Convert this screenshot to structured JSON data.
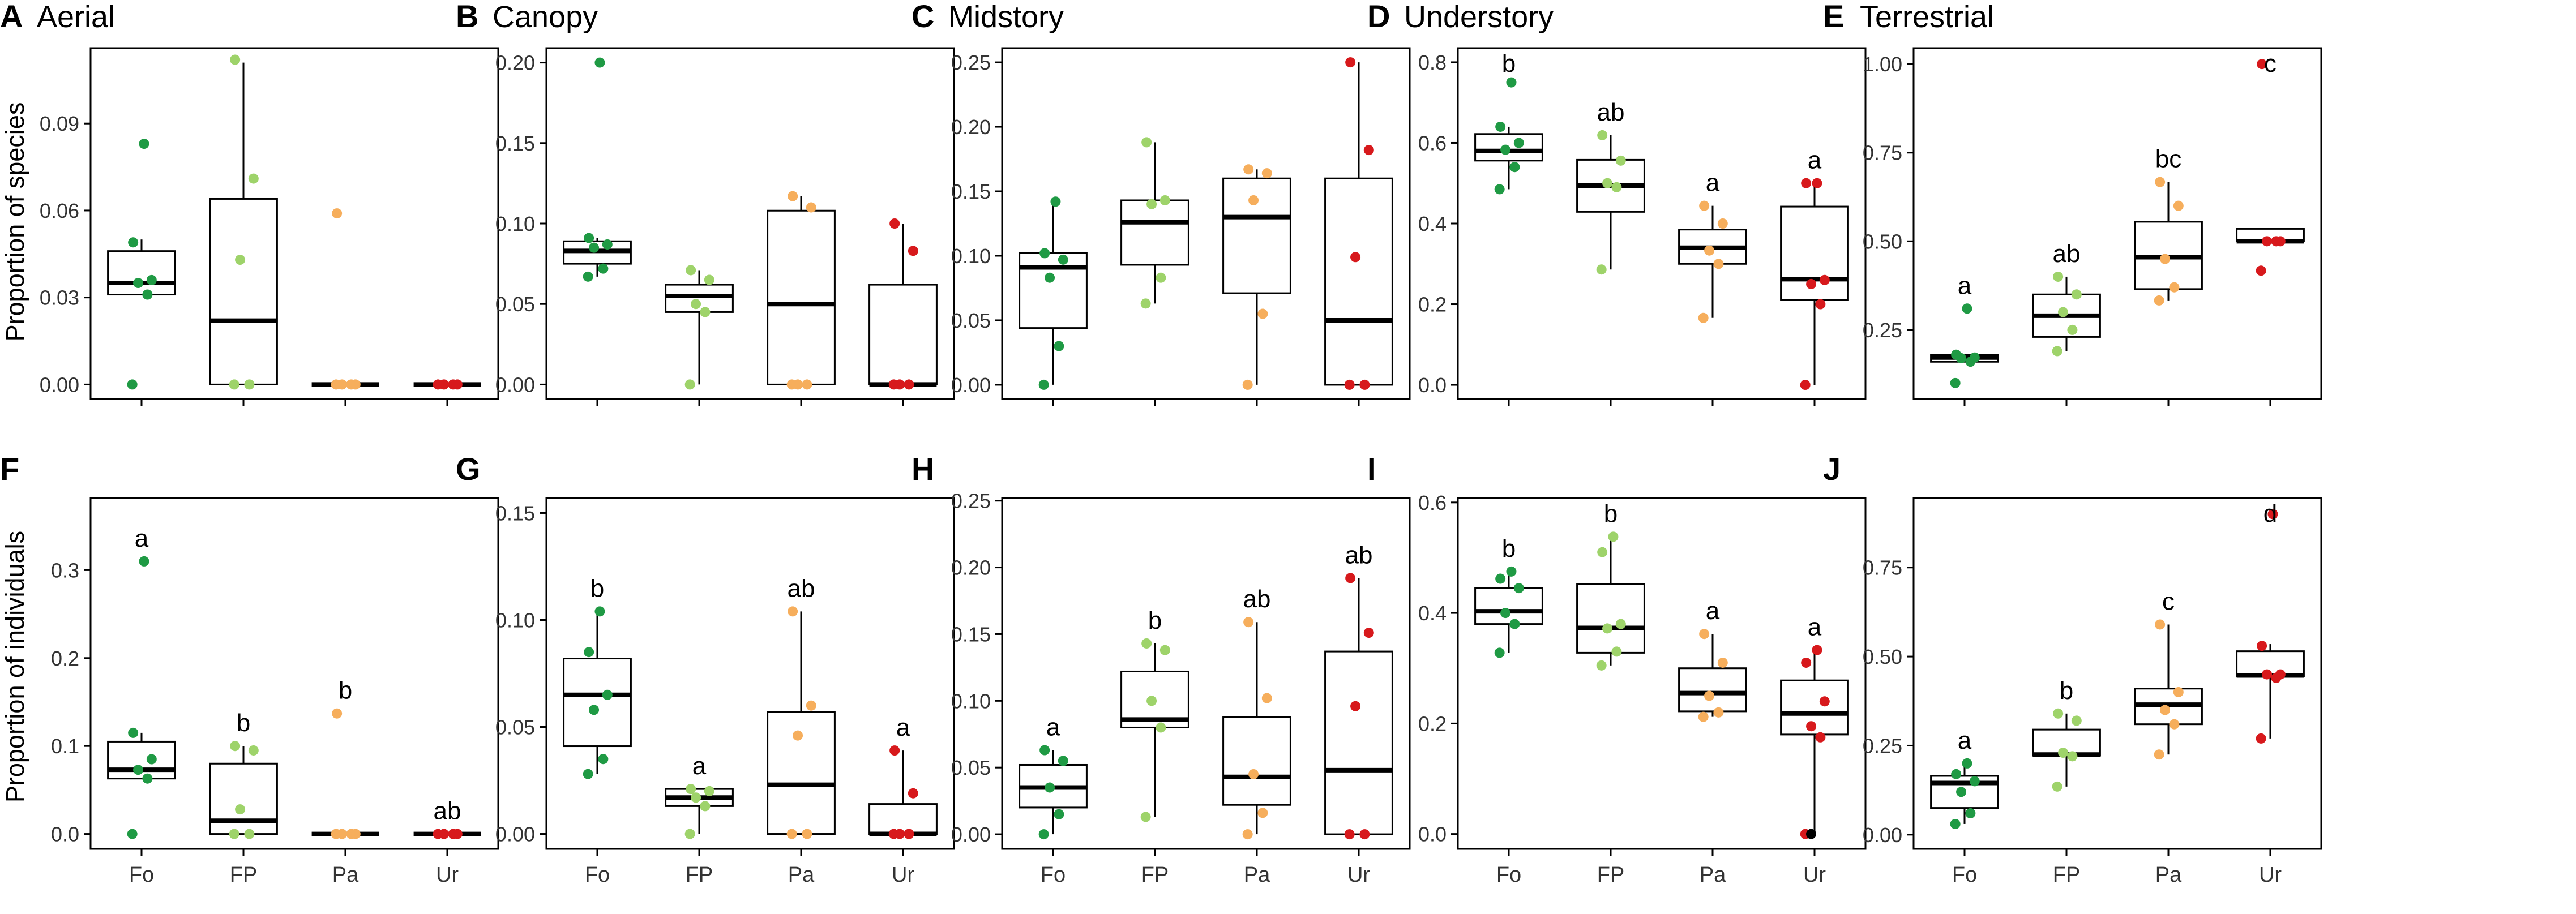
{
  "figure": {
    "y_axis_titles": [
      "Proportion of species",
      "Proportion of individuals"
    ],
    "categories": [
      "Fo",
      "FP",
      "Pa",
      "Ur"
    ],
    "colors": {
      "Fo": "#1f9a44",
      "FP": "#9ed36a",
      "Pa": "#f6ae5c",
      "Ur": "#d7191c",
      "extra": "#000000"
    }
  },
  "chart_data": [
    {
      "type": "box",
      "letter": "A",
      "title": "Aerial",
      "ylim": [
        -0.005,
        0.116
      ],
      "yticks": [
        0,
        0.03,
        0.06,
        0.09
      ],
      "tick_labels": [
        "0.00",
        "0.03",
        "0.06",
        "0.09"
      ],
      "boxes": [
        {
          "q1": 0.031,
          "median": 0.035,
          "q3": 0.046,
          "lo": 0.031,
          "hi": 0.05
        },
        {
          "q1": 0.0,
          "median": 0.022,
          "q3": 0.064,
          "lo": 0.0,
          "hi": 0.111
        },
        {
          "q1": 0.0,
          "median": 0.0,
          "q3": 0.0,
          "lo": 0.0,
          "hi": 0.0
        },
        {
          "q1": 0.0,
          "median": 0.0,
          "q3": 0.0,
          "lo": 0.0,
          "hi": 0.0
        }
      ],
      "points": [
        [
          0.0,
          0.031,
          0.035,
          0.036,
          0.049,
          0.083
        ],
        [
          0.0,
          0.0,
          0.043,
          0.071,
          0.112
        ],
        [
          0.0,
          0.0,
          0.0,
          0.0,
          0.059
        ],
        [
          0.0,
          0.0,
          0.0,
          0.0
        ]
      ],
      "sig": []
    },
    {
      "type": "box",
      "letter": "B",
      "title": "Canopy",
      "ylim": [
        -0.009,
        0.209
      ],
      "yticks": [
        0,
        0.05,
        0.1,
        0.15,
        0.2
      ],
      "tick_labels": [
        "0.00",
        "0.05",
        "0.10",
        "0.15",
        "0.20"
      ],
      "boxes": [
        {
          "q1": 0.075,
          "median": 0.083,
          "q3": 0.089,
          "lo": 0.067,
          "hi": 0.091
        },
        {
          "q1": 0.045,
          "median": 0.055,
          "q3": 0.062,
          "lo": 0.0,
          "hi": 0.071
        },
        {
          "q1": 0.0,
          "median": 0.05,
          "q3": 0.108,
          "lo": 0.0,
          "hi": 0.117
        },
        {
          "q1": 0.0,
          "median": 0.0,
          "q3": 0.062,
          "lo": 0.0,
          "hi": 0.1
        }
      ],
      "points": [
        [
          0.067,
          0.072,
          0.085,
          0.087,
          0.091,
          0.2
        ],
        [
          0.0,
          0.045,
          0.05,
          0.065,
          0.071
        ],
        [
          0.0,
          0.0,
          0.0,
          0.11,
          0.117
        ],
        [
          0.0,
          0.0,
          0.0,
          0.083,
          0.1
        ]
      ],
      "sig": []
    },
    {
      "type": "box",
      "letter": "C",
      "title": "Midstory",
      "ylim": [
        -0.011,
        0.261
      ],
      "yticks": [
        0,
        0.05,
        0.1,
        0.15,
        0.2,
        0.25
      ],
      "tick_labels": [
        "0.00",
        "0.05",
        "0.10",
        "0.15",
        "0.20",
        "0.25"
      ],
      "boxes": [
        {
          "q1": 0.044,
          "median": 0.091,
          "q3": 0.102,
          "lo": 0.0,
          "hi": 0.142
        },
        {
          "q1": 0.093,
          "median": 0.126,
          "q3": 0.143,
          "lo": 0.063,
          "hi": 0.188
        },
        {
          "q1": 0.071,
          "median": 0.13,
          "q3": 0.16,
          "lo": 0.0,
          "hi": 0.167
        },
        {
          "q1": 0.0,
          "median": 0.05,
          "q3": 0.16,
          "lo": 0.0,
          "hi": 0.25
        }
      ],
      "points": [
        [
          0.0,
          0.03,
          0.083,
          0.097,
          0.102,
          0.142
        ],
        [
          0.063,
          0.083,
          0.14,
          0.143,
          0.188
        ],
        [
          0.0,
          0.055,
          0.143,
          0.164,
          0.167
        ],
        [
          0.0,
          0.0,
          0.099,
          0.182,
          0.25
        ]
      ],
      "sig": []
    },
    {
      "type": "box",
      "letter": "D",
      "title": "Understory",
      "ylim": [
        -0.035,
        0.835
      ],
      "yticks": [
        0,
        0.2,
        0.4,
        0.6,
        0.8
      ],
      "tick_labels": [
        "0.0",
        "0.2",
        "0.4",
        "0.6",
        "0.8"
      ],
      "boxes": [
        {
          "q1": 0.556,
          "median": 0.58,
          "q3": 0.622,
          "lo": 0.485,
          "hi": 0.64
        },
        {
          "q1": 0.429,
          "median": 0.494,
          "q3": 0.558,
          "lo": 0.286,
          "hi": 0.619
        },
        {
          "q1": 0.3,
          "median": 0.34,
          "q3": 0.385,
          "lo": 0.166,
          "hi": 0.444
        },
        {
          "q1": 0.211,
          "median": 0.262,
          "q3": 0.442,
          "lo": 0.0,
          "hi": 0.5
        }
      ],
      "points": [
        [
          0.485,
          0.54,
          0.583,
          0.6,
          0.64,
          0.75
        ],
        [
          0.286,
          0.49,
          0.5,
          0.556,
          0.619
        ],
        [
          0.166,
          0.3,
          0.333,
          0.4,
          0.444
        ],
        [
          0.0,
          0.2,
          0.25,
          0.26,
          0.5,
          0.5
        ]
      ],
      "sig": [
        "b",
        "ab",
        "a",
        "a"
      ]
    },
    {
      "type": "box",
      "letter": "E",
      "title": "Terrestrial",
      "ylim": [
        0.055,
        1.045
      ],
      "yticks": [
        0.25,
        0.5,
        0.75,
        1.0
      ],
      "tick_labels": [
        "0.25",
        "0.50",
        "0.75",
        "1.00"
      ],
      "boxes": [
        {
          "q1": 0.16,
          "median": 0.172,
          "q3": 0.18,
          "lo": 0.16,
          "hi": 0.18
        },
        {
          "q1": 0.23,
          "median": 0.29,
          "q3": 0.35,
          "lo": 0.19,
          "hi": 0.4
        },
        {
          "q1": 0.365,
          "median": 0.455,
          "q3": 0.555,
          "lo": 0.333,
          "hi": 0.667
        },
        {
          "q1": 0.5,
          "median": 0.5,
          "q3": 0.535,
          "lo": 0.5,
          "hi": 0.535
        }
      ],
      "points": [
        [
          0.1,
          0.16,
          0.17,
          0.172,
          0.18,
          0.31
        ],
        [
          0.19,
          0.25,
          0.3,
          0.35,
          0.4
        ],
        [
          0.333,
          0.37,
          0.45,
          0.6,
          0.667
        ],
        [
          0.417,
          0.5,
          0.5,
          0.5,
          1.0
        ]
      ],
      "sig": [
        "a",
        "ab",
        "bc",
        "c"
      ]
    },
    {
      "type": "box",
      "letter": "F",
      "title": "",
      "ylim": [
        -0.017,
        0.382
      ],
      "yticks": [
        0,
        0.1,
        0.2,
        0.3
      ],
      "tick_labels": [
        "0.0",
        "0.1",
        "0.2",
        "0.3"
      ],
      "boxes": [
        {
          "q1": 0.063,
          "median": 0.073,
          "q3": 0.105,
          "lo": 0.063,
          "hi": 0.115
        },
        {
          "q1": 0.0,
          "median": 0.015,
          "q3": 0.08,
          "lo": 0.0,
          "hi": 0.1
        },
        {
          "q1": 0.0,
          "median": 0.0,
          "q3": 0.0,
          "lo": 0.0,
          "hi": 0.0
        },
        {
          "q1": 0.0,
          "median": 0.0,
          "q3": 0.0,
          "lo": 0.0,
          "hi": 0.0
        }
      ],
      "points": [
        [
          0.0,
          0.063,
          0.073,
          0.085,
          0.115,
          0.31
        ],
        [
          0.0,
          0.0,
          0.028,
          0.095,
          0.1
        ],
        [
          0.0,
          0.0,
          0.0,
          0.0,
          0.137
        ],
        [
          0.0,
          0.0,
          0.0,
          0.0
        ]
      ],
      "sig": [
        "a",
        "b",
        "b",
        "ab"
      ]
    },
    {
      "type": "box",
      "letter": "G",
      "title": "",
      "ylim": [
        -0.007,
        0.157
      ],
      "yticks": [
        0,
        0.05,
        0.1,
        0.15
      ],
      "tick_labels": [
        "0.00",
        "0.05",
        "0.10",
        "0.15"
      ],
      "boxes": [
        {
          "q1": 0.041,
          "median": 0.065,
          "q3": 0.082,
          "lo": 0.028,
          "hi": 0.104
        },
        {
          "q1": 0.013,
          "median": 0.017,
          "q3": 0.021,
          "lo": 0.0,
          "hi": 0.021
        },
        {
          "q1": 0.0,
          "median": 0.023,
          "q3": 0.057,
          "lo": 0.0,
          "hi": 0.104
        },
        {
          "q1": 0.0,
          "median": 0.0,
          "q3": 0.014,
          "lo": 0.0,
          "hi": 0.039
        }
      ],
      "points": [
        [
          0.028,
          0.035,
          0.058,
          0.065,
          0.085,
          0.104
        ],
        [
          0.0,
          0.013,
          0.017,
          0.02,
          0.021
        ],
        [
          0.0,
          0.0,
          0.046,
          0.06,
          0.104
        ],
        [
          0.0,
          0.0,
          0.0,
          0.019,
          0.039
        ]
      ],
      "sig": [
        "b",
        "a",
        "ab",
        "a"
      ]
    },
    {
      "type": "box",
      "letter": "H",
      "title": "",
      "ylim": [
        -0.011,
        0.252
      ],
      "yticks": [
        0,
        0.05,
        0.1,
        0.15,
        0.2,
        0.25
      ],
      "tick_labels": [
        "0.00",
        "0.05",
        "0.10",
        "0.15",
        "0.20",
        "0.25"
      ],
      "boxes": [
        {
          "q1": 0.02,
          "median": 0.035,
          "q3": 0.052,
          "lo": 0.0,
          "hi": 0.063
        },
        {
          "q1": 0.08,
          "median": 0.086,
          "q3": 0.122,
          "lo": 0.013,
          "hi": 0.143
        },
        {
          "q1": 0.022,
          "median": 0.043,
          "q3": 0.088,
          "lo": 0.0,
          "hi": 0.159
        },
        {
          "q1": 0.0,
          "median": 0.048,
          "q3": 0.137,
          "lo": 0.0,
          "hi": 0.192
        }
      ],
      "points": [
        [
          0.0,
          0.015,
          0.035,
          0.055,
          0.063
        ],
        [
          0.013,
          0.08,
          0.1,
          0.138,
          0.143
        ],
        [
          0.0,
          0.016,
          0.045,
          0.102,
          0.159
        ],
        [
          0.0,
          0.0,
          0.096,
          0.151,
          0.192
        ]
      ],
      "sig": [
        "a",
        "b",
        "ab",
        "ab"
      ]
    },
    {
      "type": "box",
      "letter": "I",
      "title": "",
      "ylim": [
        -0.027,
        0.608
      ],
      "yticks": [
        0,
        0.2,
        0.4,
        0.6
      ],
      "tick_labels": [
        "0.0",
        "0.2",
        "0.4",
        "0.6"
      ],
      "boxes": [
        {
          "q1": 0.38,
          "median": 0.403,
          "q3": 0.445,
          "lo": 0.328,
          "hi": 0.475
        },
        {
          "q1": 0.328,
          "median": 0.373,
          "q3": 0.452,
          "lo": 0.305,
          "hi": 0.538
        },
        {
          "q1": 0.222,
          "median": 0.255,
          "q3": 0.3,
          "lo": 0.212,
          "hi": 0.362
        },
        {
          "q1": 0.18,
          "median": 0.218,
          "q3": 0.278,
          "lo": 0.0,
          "hi": 0.333
        }
      ],
      "points": [
        [
          0.328,
          0.38,
          0.4,
          0.445,
          0.462,
          0.475
        ],
        [
          0.305,
          0.33,
          0.372,
          0.38,
          0.51,
          0.538
        ],
        [
          0.212,
          0.22,
          0.25,
          0.31,
          0.362
        ],
        [
          0.0,
          0.175,
          0.195,
          0.24,
          0.31,
          0.333
        ]
      ],
      "extra_points": [
        {
          "series": 3,
          "value": 0.0
        }
      ],
      "sig": [
        "b",
        "b",
        "a",
        "a"
      ]
    },
    {
      "type": "box",
      "letter": "J",
      "title": "",
      "ylim": [
        -0.04,
        0.945
      ],
      "yticks": [
        0,
        0.25,
        0.5,
        0.75
      ],
      "tick_labels": [
        "0.00",
        "0.25",
        "0.50",
        "0.75"
      ],
      "boxes": [
        {
          "q1": 0.075,
          "median": 0.145,
          "q3": 0.165,
          "lo": 0.03,
          "hi": 0.2
        },
        {
          "q1": 0.222,
          "median": 0.225,
          "q3": 0.295,
          "lo": 0.135,
          "hi": 0.34
        },
        {
          "q1": 0.31,
          "median": 0.365,
          "q3": 0.41,
          "lo": 0.225,
          "hi": 0.59
        },
        {
          "q1": 0.445,
          "median": 0.447,
          "q3": 0.515,
          "lo": 0.27,
          "hi": 0.535
        }
      ],
      "points": [
        [
          0.03,
          0.06,
          0.12,
          0.15,
          0.17,
          0.2
        ],
        [
          0.135,
          0.22,
          0.23,
          0.32,
          0.34
        ],
        [
          0.225,
          0.31,
          0.35,
          0.4,
          0.59
        ],
        [
          0.27,
          0.44,
          0.45,
          0.45,
          0.53,
          0.9
        ]
      ],
      "sig": [
        "a",
        "b",
        "c",
        "d"
      ]
    }
  ]
}
